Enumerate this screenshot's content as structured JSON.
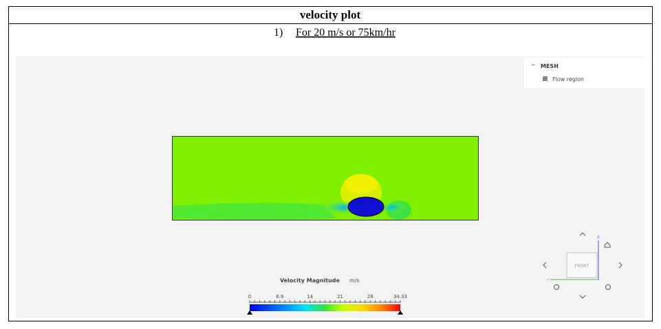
{
  "header": {
    "title": "velocity plot"
  },
  "item": {
    "number": "1)",
    "text": "For 20 m/s or 75km/hr"
  },
  "viewer": {
    "tree": {
      "section": "MESH",
      "node": "Flow region"
    },
    "legend": {
      "title": "Velocity Magnitude",
      "unit": "m/s",
      "ticks": [
        "0",
        "6.9",
        "14",
        "21",
        "28",
        "34.33"
      ]
    },
    "cube": {
      "face": "FRONT",
      "axis_z": "Z",
      "axis_y": "Y"
    }
  }
}
